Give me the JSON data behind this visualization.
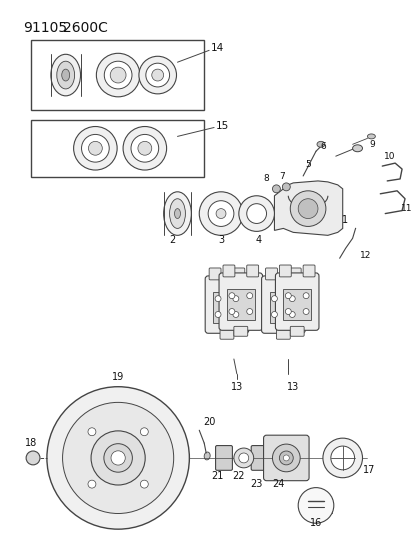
{
  "title_1": "91105",
  "title_2": "2600C",
  "bg_color": "#ffffff",
  "lc": "#444444",
  "tc": "#111111",
  "figsize": [
    4.14,
    5.33
  ],
  "dpi": 100,
  "xlim": [
    0,
    414
  ],
  "ylim": [
    0,
    533
  ]
}
